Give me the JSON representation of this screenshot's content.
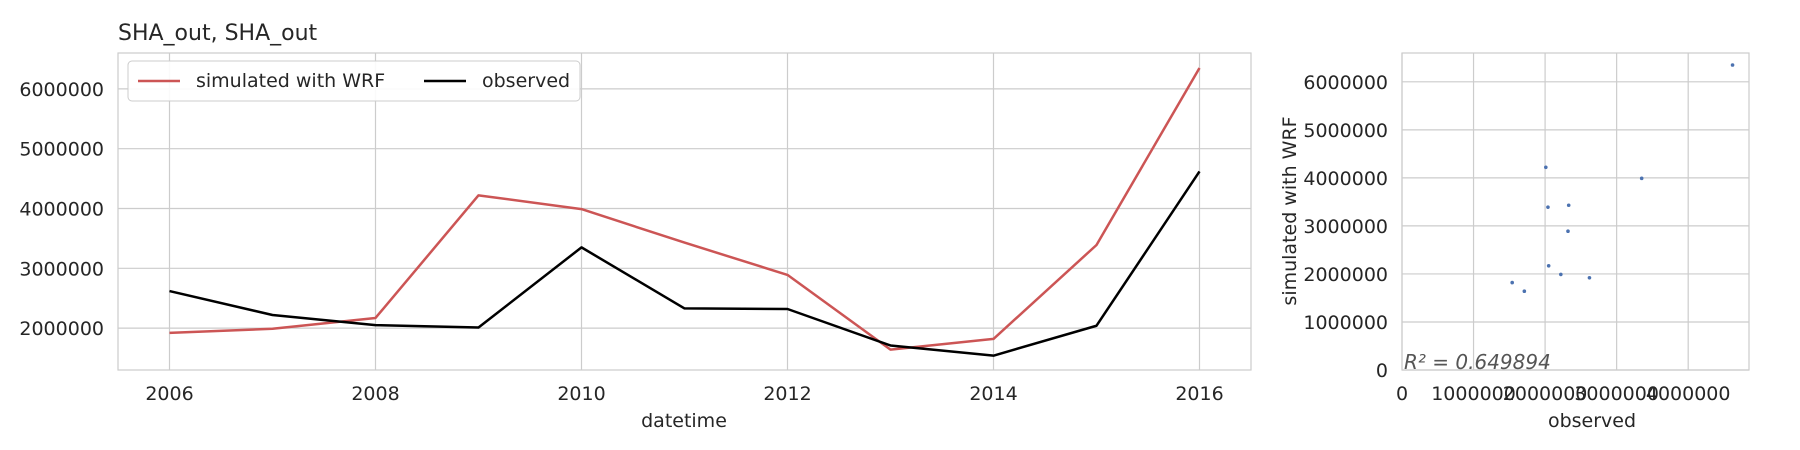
{
  "chart_data": [
    {
      "type": "line",
      "title": "SHA_out, SHA_out",
      "xlabel": "datetime",
      "ylabel": "",
      "x": [
        2006,
        2007,
        2008,
        2009,
        2010,
        2011,
        2012,
        2013,
        2014,
        2015,
        2016
      ],
      "xlim": [
        2005.5,
        2016.5
      ],
      "ylim": [
        1300000,
        6600000
      ],
      "xticks": [
        "2006",
        "2008",
        "2010",
        "2012",
        "2014",
        "2016"
      ],
      "yticks": [
        "2000000",
        "3000000",
        "4000000",
        "5000000",
        "6000000"
      ],
      "grid": true,
      "legend_position": "top-left",
      "series": [
        {
          "name": "simulated with WRF",
          "color": "#cc5555",
          "values": [
            1920000,
            1990000,
            2170000,
            4220000,
            3990000,
            3430000,
            2890000,
            1640000,
            1820000,
            3390000,
            6350000
          ]
        },
        {
          "name": "observed",
          "color": "#000000",
          "values": [
            2620000,
            2220000,
            2050000,
            2010000,
            3350000,
            2330000,
            2320000,
            1710000,
            1540000,
            2040000,
            4620000
          ]
        }
      ]
    },
    {
      "type": "scatter",
      "title": "",
      "xlabel": "observed",
      "ylabel": "simulated with WRF",
      "xlim": [
        0,
        4850000
      ],
      "ylim": [
        0,
        6600000
      ],
      "xticks": [
        "0",
        "1000000",
        "2000000",
        "3000000",
        "4000000"
      ],
      "yticks": [
        "0",
        "1000000",
        "2000000",
        "3000000",
        "4000000",
        "5000000",
        "6000000"
      ],
      "grid": true,
      "point_color": "#4c72b0",
      "annotation": "R² = 0.649894",
      "points": [
        {
          "x": 2620000,
          "y": 1920000
        },
        {
          "x": 2220000,
          "y": 1990000
        },
        {
          "x": 2050000,
          "y": 2170000
        },
        {
          "x": 2010000,
          "y": 4220000
        },
        {
          "x": 3350000,
          "y": 3990000
        },
        {
          "x": 2330000,
          "y": 3430000
        },
        {
          "x": 2320000,
          "y": 2890000
        },
        {
          "x": 1710000,
          "y": 1640000
        },
        {
          "x": 1540000,
          "y": 1820000
        },
        {
          "x": 2040000,
          "y": 3390000
        },
        {
          "x": 4620000,
          "y": 6350000
        }
      ]
    }
  ]
}
